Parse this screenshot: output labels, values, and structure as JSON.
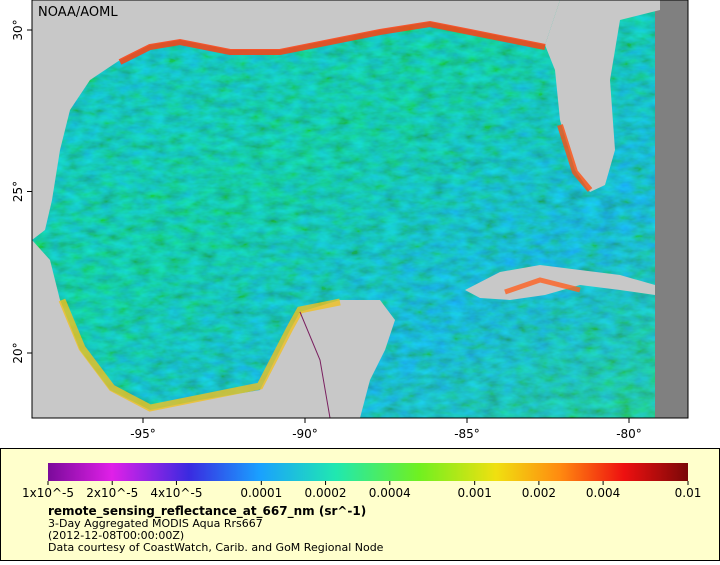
{
  "map": {
    "watermark": "NOAA/AOML",
    "lat_ticks": [
      {
        "value": 30,
        "label": "30°"
      },
      {
        "value": 25,
        "label": "25°"
      },
      {
        "value": 20,
        "label": "20°"
      }
    ],
    "lon_ticks": [
      {
        "value": -95,
        "label": "-95°"
      },
      {
        "value": -90,
        "label": "-90°"
      },
      {
        "value": -85,
        "label": "-85°"
      },
      {
        "value": -80,
        "label": "-80°"
      }
    ]
  },
  "colorbar": {
    "scale": "log",
    "lim": [
      1e-05,
      0.01
    ],
    "ticks": [
      {
        "value": 1e-05,
        "label": "1x10^-5"
      },
      {
        "value": 2e-05,
        "label": "2x10^-5"
      },
      {
        "value": 4e-05,
        "label": "4x10^-5"
      },
      {
        "value": 0.0001,
        "label": "0.0001"
      },
      {
        "value": 0.0002,
        "label": "0.0002"
      },
      {
        "value": 0.0004,
        "label": "0.0004"
      },
      {
        "value": 0.001,
        "label": "0.001"
      },
      {
        "value": 0.002,
        "label": "0.002"
      },
      {
        "value": 0.004,
        "label": "0.004"
      },
      {
        "value": 0.01,
        "label": "0.01"
      }
    ],
    "title": "remote_sensing_reflectance_at_667_nm (sr^-1)",
    "lines": [
      "3-Day Aggregated MODIS Aqua Rrs667",
      "(2012-12-08T00:00:00Z)",
      "Data courtesy of CoastWatch, Carib. and GoM Regional Node"
    ]
  }
}
